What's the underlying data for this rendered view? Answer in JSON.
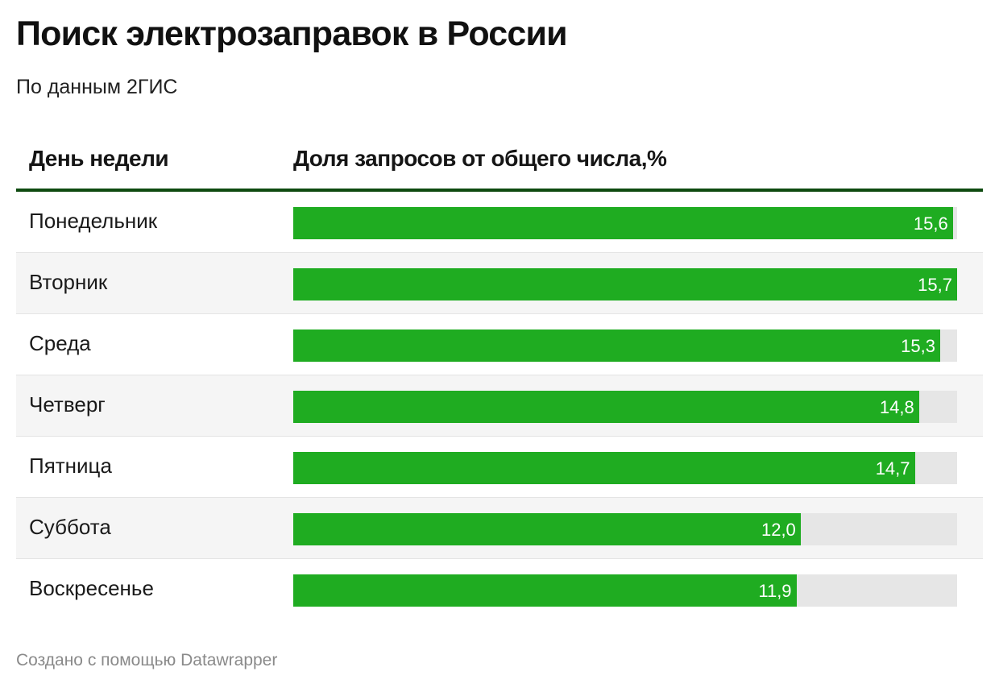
{
  "title": "Поиск электрозаправок в России",
  "subtitle": "По данным 2ГИС",
  "table": {
    "col_day": "День недели",
    "col_share": "Доля запросов от общего числа,%"
  },
  "footer": "Создано с помощью Datawrapper",
  "colors": {
    "bar": "#1fac21",
    "track": "#e6e6e6",
    "header_rule": "#0e4a10"
  },
  "chart_data": {
    "type": "bar",
    "orientation": "horizontal",
    "xlabel": "День недели",
    "ylabel": "Доля запросов от общего числа,%",
    "categories": [
      "Понедельник",
      "Вторник",
      "Среда",
      "Четверг",
      "Пятница",
      "Суббота",
      "Воскресенье"
    ],
    "values": [
      15.6,
      15.7,
      15.3,
      14.8,
      14.7,
      12.0,
      11.9
    ],
    "labels": [
      "15,6",
      "15,7",
      "15,3",
      "14,8",
      "14,7",
      "12,0",
      "11,9"
    ],
    "xlim": [
      0,
      15.7
    ]
  }
}
